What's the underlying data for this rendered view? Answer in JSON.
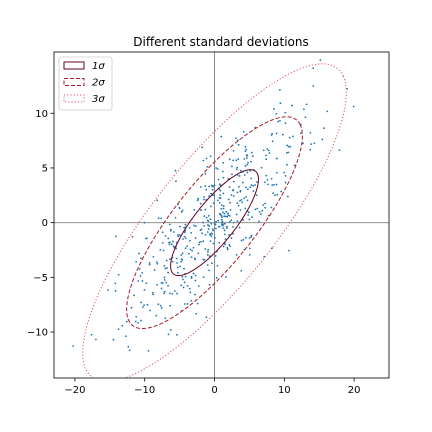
{
  "chart_data": {
    "type": "scatter",
    "title": "Different standard deviations",
    "xlabel": "",
    "ylabel": "",
    "xlim": [
      -23.0,
      25.0
    ],
    "ylim": [
      -14.2,
      15.6
    ],
    "xticks": [
      -20,
      -10,
      0,
      10,
      20
    ],
    "yticks": [
      -10,
      -5,
      0,
      5,
      10
    ],
    "xtick_labels": [
      "−20",
      "−10",
      "0",
      "10",
      "20"
    ],
    "ytick_labels": [
      "−10",
      "−5",
      "0",
      "5",
      "10"
    ],
    "reference_lines": {
      "x": 0,
      "y": 0,
      "color": "#808080"
    },
    "point_color": "#1f77b4",
    "distribution": {
      "center": [
        0.0,
        0.0
      ],
      "semi_major_1sigma": 7.6,
      "semi_minor_1sigma": 2.3,
      "angle_deg": 36
    },
    "ellipses": [
      {
        "label": "1σ",
        "n_std": 1,
        "color": "#67001f",
        "linestyle": "solid"
      },
      {
        "label": "2σ",
        "n_std": 2,
        "color": "#a51c2a",
        "linestyle": "dashed"
      },
      {
        "label": "3σ",
        "n_std": 3,
        "color": "#e0506a",
        "linestyle": "dotted"
      }
    ],
    "legend": {
      "position": "top-left"
    },
    "n_points": 500
  }
}
